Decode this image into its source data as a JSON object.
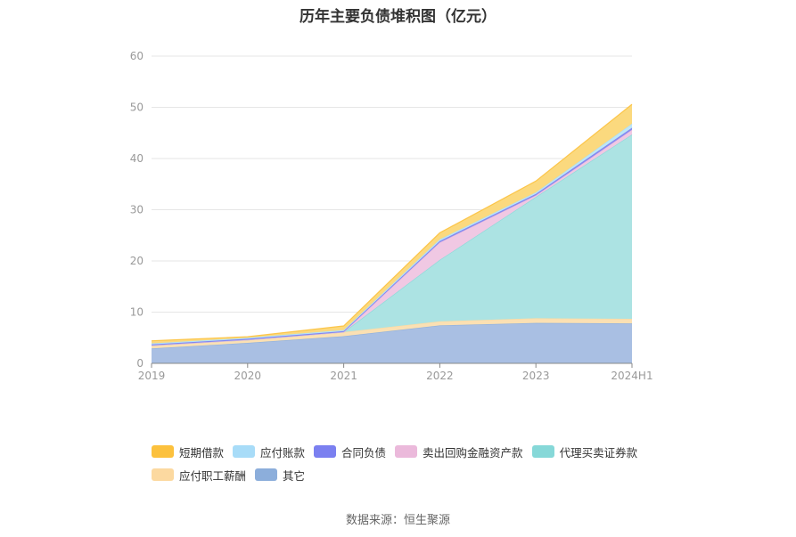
{
  "chart_data": {
    "type": "area",
    "stacked": true,
    "title": "历年主要负债堆积图（亿元）",
    "categories": [
      "2019",
      "2020",
      "2021",
      "2022",
      "2023",
      "2024H1"
    ],
    "ylim": [
      0,
      60
    ],
    "yticks": [
      0,
      10,
      20,
      30,
      40,
      50,
      60
    ],
    "grid": true,
    "legend_position": "bottom",
    "series": [
      {
        "name": "其它",
        "color": "#a9bfe3",
        "values": [
          2.9,
          4.0,
          5.3,
          7.4,
          7.9,
          7.8
        ]
      },
      {
        "name": "应付职工薪酬",
        "color": "#fbe0b3",
        "values": [
          0.6,
          0.6,
          0.8,
          0.8,
          0.9,
          0.9
        ]
      },
      {
        "name": "代理买卖证券款",
        "color": "#ace3e3",
        "values": [
          0.0,
          0.0,
          0.0,
          12.0,
          23.7,
          36.0
        ]
      },
      {
        "name": "卖出回购金融资产款",
        "color": "#f0c8e3",
        "values": [
          0.0,
          0.0,
          0.0,
          3.4,
          0.3,
          0.9
        ]
      },
      {
        "name": "合同负债",
        "color": "#8a8ff0",
        "values": [
          0.2,
          0.2,
          0.2,
          0.3,
          0.3,
          0.4
        ]
      },
      {
        "name": "应付账款",
        "color": "#bde6f7",
        "values": [
          0.2,
          0.2,
          0.2,
          0.3,
          0.3,
          0.8
        ]
      },
      {
        "name": "短期借款",
        "color": "#fbd97e",
        "values": [
          0.5,
          0.2,
          0.8,
          1.3,
          2.2,
          3.8
        ]
      }
    ],
    "legend_order": [
      "短期借款",
      "应付账款",
      "合同负债",
      "卖出回购金融资产款",
      "代理买卖证券款",
      "应付职工薪酬",
      "其它"
    ],
    "legend_colors": {
      "短期借款": "#fcc13d",
      "应付账款": "#a8dcf8",
      "合同负债": "#7b80f0",
      "卖出回购金融资产款": "#ebb9db",
      "代理买卖证券款": "#86d8d8",
      "应付职工薪酬": "#fcd9a0",
      "其它": "#8caedb"
    }
  },
  "source": "数据来源：恒生聚源"
}
